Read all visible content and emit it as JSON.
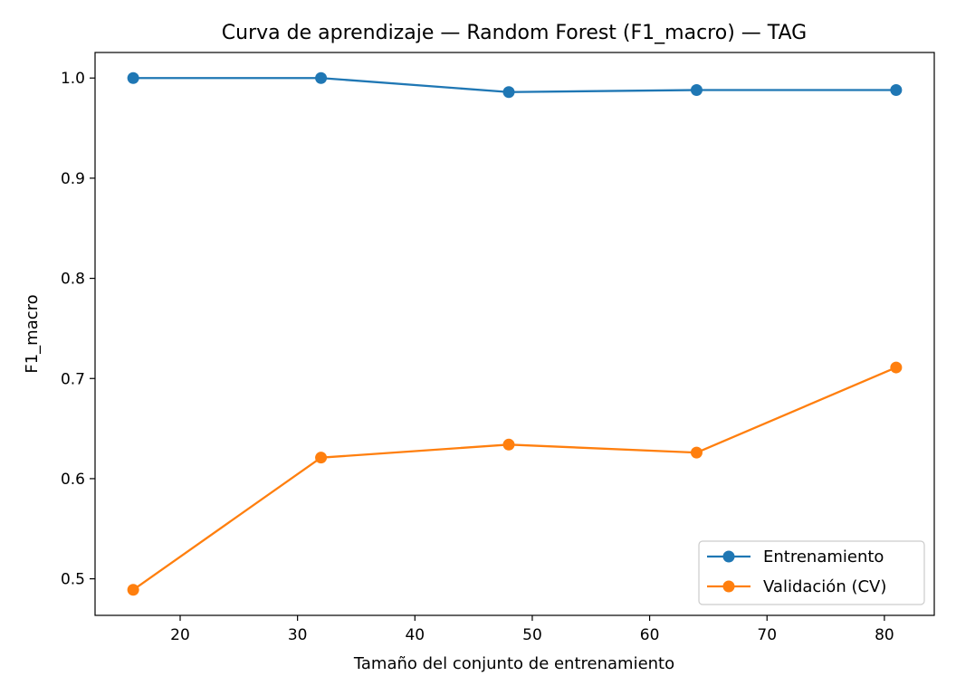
{
  "chart_data": {
    "type": "line",
    "title": "Curva de aprendizaje — Random Forest (F1_macro) — TAG",
    "xlabel": "Tamaño del conjunto de entrenamiento",
    "ylabel": "F1_macro",
    "x": [
      16,
      32,
      48,
      64,
      81
    ],
    "xlim": [
      12.75,
      84.25
    ],
    "ylim": [
      0.4635,
      1.0255
    ],
    "xticks": [
      20,
      30,
      40,
      50,
      60,
      70,
      80
    ],
    "yticks": [
      0.5,
      0.6,
      0.7,
      0.8,
      0.9,
      1.0
    ],
    "xtick_labels": [
      "20",
      "30",
      "40",
      "50",
      "60",
      "70",
      "80"
    ],
    "ytick_labels": [
      "0.5",
      "0.6",
      "0.7",
      "0.8",
      "0.9",
      "1.0"
    ],
    "grid": false,
    "legend_position": "bottom-right",
    "series": [
      {
        "name": "Entrenamiento",
        "color": "#1f77b4",
        "values": [
          1.0,
          1.0,
          0.986,
          0.988,
          0.988
        ]
      },
      {
        "name": "Validación (CV)",
        "color": "#ff7f0e",
        "values": [
          0.489,
          0.621,
          0.634,
          0.626,
          0.711
        ]
      }
    ]
  }
}
